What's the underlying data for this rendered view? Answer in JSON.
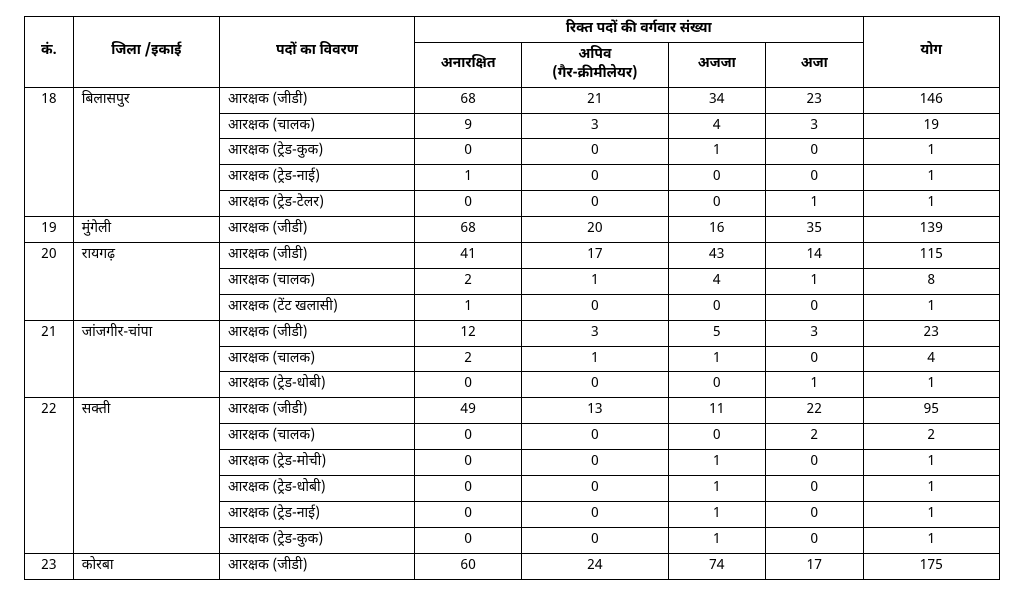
{
  "header": {
    "sn": "कं.",
    "district": "जिला /इकाई",
    "desc": "पदों का विवरण",
    "group": "रिक्त पदों की वर्गवार संख्या",
    "c1": "अनारक्षित",
    "c2_line1": "अपिव",
    "c2_line2": "(गैर-क्रीमीलेयर)",
    "c3": "अजजा",
    "c4": "अजा",
    "total": "योग"
  },
  "districts": [
    {
      "sn": "18",
      "name": "बिलासपुर",
      "rows": [
        {
          "desc": "आरक्षक (जीडी)",
          "c1": "68",
          "c2": "21",
          "c3": "34",
          "c4": "23",
          "tot": "146"
        },
        {
          "desc": "आरक्षक (चालक)",
          "c1": "9",
          "c2": "3",
          "c3": "4",
          "c4": "3",
          "tot": "19"
        },
        {
          "desc": "आरक्षक (ट्रेड-कुक)",
          "c1": "0",
          "c2": "0",
          "c3": "1",
          "c4": "0",
          "tot": "1"
        },
        {
          "desc": "आरक्षक (ट्रेड-नाई)",
          "c1": "1",
          "c2": "0",
          "c3": "0",
          "c4": "0",
          "tot": "1"
        },
        {
          "desc": "आरक्षक (ट्रेड-टेलर)",
          "c1": "0",
          "c2": "0",
          "c3": "0",
          "c4": "1",
          "tot": "1"
        }
      ]
    },
    {
      "sn": "19",
      "name": "मुंगेली",
      "rows": [
        {
          "desc": "आरक्षक (जीडी)",
          "c1": "68",
          "c2": "20",
          "c3": "16",
          "c4": "35",
          "tot": "139"
        }
      ]
    },
    {
      "sn": "20",
      "name": "रायगढ़",
      "rows": [
        {
          "desc": "आरक्षक (जीडी)",
          "c1": "41",
          "c2": "17",
          "c3": "43",
          "c4": "14",
          "tot": "115"
        },
        {
          "desc": "आरक्षक (चालक)",
          "c1": "2",
          "c2": "1",
          "c3": "4",
          "c4": "1",
          "tot": "8"
        },
        {
          "desc": "आरक्षक (टेंट खलासी)",
          "c1": "1",
          "c2": "0",
          "c3": "0",
          "c4": "0",
          "tot": "1"
        }
      ]
    },
    {
      "sn": "21",
      "name": "जांजगीर-चांपा",
      "rows": [
        {
          "desc": "आरक्षक (जीडी)",
          "c1": "12",
          "c2": "3",
          "c3": "5",
          "c4": "3",
          "tot": "23"
        },
        {
          "desc": "आरक्षक (चालक)",
          "c1": "2",
          "c2": "1",
          "c3": "1",
          "c4": "0",
          "tot": "4"
        },
        {
          "desc": "आरक्षक (ट्रेड-धोबी)",
          "c1": "0",
          "c2": "0",
          "c3": "0",
          "c4": "1",
          "tot": "1"
        }
      ]
    },
    {
      "sn": "22",
      "name": "सक्ती",
      "rows": [
        {
          "desc": "आरक्षक (जीडी)",
          "c1": "49",
          "c2": "13",
          "c3": "11",
          "c4": "22",
          "tot": "95"
        },
        {
          "desc": "आरक्षक (चालक)",
          "c1": "0",
          "c2": "0",
          "c3": "0",
          "c4": "2",
          "tot": "2"
        },
        {
          "desc": "आरक्षक (ट्रेड-मोची)",
          "c1": "0",
          "c2": "0",
          "c3": "1",
          "c4": "0",
          "tot": "1"
        },
        {
          "desc": "आरक्षक (ट्रेड-धोबी)",
          "c1": "0",
          "c2": "0",
          "c3": "1",
          "c4": "0",
          "tot": "1"
        },
        {
          "desc": "आरक्षक (ट्रेड-नाई)",
          "c1": "0",
          "c2": "0",
          "c3": "1",
          "c4": "0",
          "tot": "1"
        },
        {
          "desc": "आरक्षक (ट्रेड-कुक)",
          "c1": "0",
          "c2": "0",
          "c3": "1",
          "c4": "0",
          "tot": "1"
        }
      ]
    },
    {
      "sn": "23",
      "name": "कोरबा",
      "rows": [
        {
          "desc": "आरक्षक (जीडी)",
          "c1": "60",
          "c2": "24",
          "c3": "74",
          "c4": "17",
          "tot": "175"
        }
      ]
    }
  ]
}
